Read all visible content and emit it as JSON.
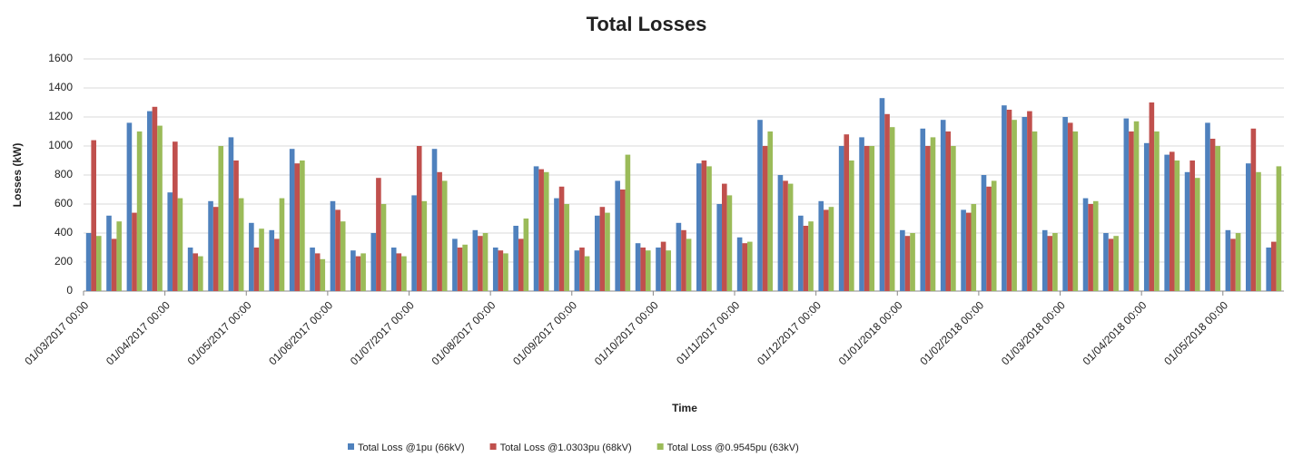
{
  "chart_data": {
    "type": "bar",
    "title": "Total Losses",
    "x_label": "Time",
    "y_label": "Losses (kW)",
    "categories": [
      "01/03/2017 00:00",
      null,
      null,
      null,
      "01/04/2017 00:00",
      null,
      null,
      null,
      "01/05/2017 00:00",
      null,
      null,
      null,
      "01/06/2017 00:00",
      null,
      null,
      null,
      "01/07/2017 00:00",
      null,
      null,
      null,
      "01/08/2017 00:00",
      null,
      null,
      null,
      "01/09/2017 00:00",
      null,
      null,
      null,
      "01/10/2017 00:00",
      null,
      null,
      null,
      "01/11/2017 00:00",
      null,
      null,
      null,
      "01/12/2017 00:00",
      null,
      null,
      null,
      "01/01/2018 00:00",
      null,
      null,
      null,
      "01/02/2018 00:00",
      null,
      null,
      null,
      "01/03/2018 00:00",
      null,
      null,
      null,
      "01/04/2018 00:00",
      null,
      null,
      null,
      "01/05/2018 00:00",
      null,
      null
    ],
    "series": [
      {
        "name": "Total Loss @1pu (66kV)",
        "color": "#4f81bd",
        "values": [
          400,
          520,
          1160,
          1240,
          680,
          300,
          620,
          1060,
          470,
          420,
          980,
          300,
          620,
          280,
          400,
          300,
          660,
          980,
          360,
          420,
          300,
          450,
          860,
          640,
          280,
          520,
          760,
          330,
          300,
          470,
          880,
          600,
          370,
          1180,
          800,
          520,
          620,
          1000,
          1060,
          1330,
          420,
          1120,
          1180,
          560,
          800,
          1280,
          1200,
          420,
          1200,
          640,
          400,
          1190,
          1020,
          940,
          820,
          1160,
          420,
          880,
          300
        ]
      },
      {
        "name": "Total Loss @1.0303pu (68kV)",
        "color": "#c0504d",
        "values": [
          1040,
          360,
          540,
          1270,
          1030,
          260,
          580,
          900,
          300,
          360,
          880,
          260,
          560,
          240,
          780,
          260,
          1000,
          820,
          300,
          380,
          280,
          360,
          840,
          720,
          300,
          580,
          700,
          300,
          340,
          420,
          900,
          740,
          330,
          1000,
          760,
          450,
          560,
          1080,
          1000,
          1220,
          380,
          1000,
          1100,
          540,
          720,
          1250,
          1240,
          380,
          1160,
          600,
          360,
          1100,
          1300,
          960,
          900,
          1050,
          360,
          1120,
          340
        ]
      },
      {
        "name": "Total Loss @0.9545pu (63kV)",
        "color": "#9bbb59",
        "values": [
          380,
          480,
          1100,
          1140,
          640,
          240,
          1000,
          640,
          430,
          640,
          900,
          220,
          480,
          260,
          600,
          240,
          620,
          760,
          320,
          400,
          260,
          500,
          820,
          600,
          240,
          540,
          940,
          280,
          280,
          360,
          860,
          660,
          340,
          1100,
          740,
          480,
          580,
          900,
          1000,
          1130,
          400,
          1060,
          1000,
          600,
          760,
          1180,
          1100,
          400,
          1100,
          620,
          380,
          1170,
          1100,
          900,
          780,
          1000,
          400,
          820,
          860
        ]
      }
    ],
    "ylim": [
      0,
      1600
    ],
    "yticks": [
      0,
      200,
      400,
      600,
      800,
      1000,
      1200,
      1400,
      1600
    ],
    "grid": true,
    "legend": "bottom"
  }
}
